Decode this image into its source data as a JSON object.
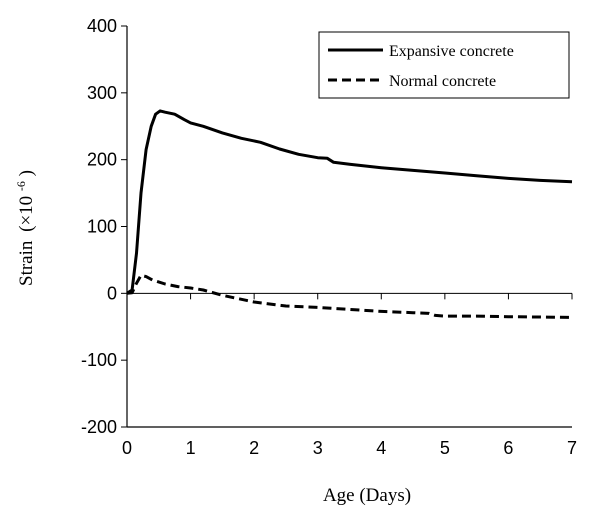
{
  "chart_data": {
    "type": "line",
    "xlabel": "Age (Days)",
    "ylabel": {
      "main": "Strain",
      "unit_prefix": "(×10",
      "unit_exp": "-6",
      "unit_suffix": ")"
    },
    "xlim": [
      0,
      7
    ],
    "ylim": [
      -200,
      400
    ],
    "xticks": [
      0,
      1,
      2,
      3,
      4,
      5,
      6,
      7
    ],
    "yticks": [
      -200,
      -100,
      0,
      100,
      200,
      300,
      400
    ],
    "xtick_labels": [
      "0",
      "1",
      "2",
      "3",
      "4",
      "5",
      "6",
      "7"
    ],
    "ytick_labels": [
      "-200",
      "-100",
      "0",
      "100",
      "200",
      "300",
      "400"
    ],
    "grid": false,
    "legend_position": "top-right",
    "series": [
      {
        "name": "Expansive concrete",
        "style": "solid",
        "color": "#000000",
        "points": [
          [
            0,
            0
          ],
          [
            0.08,
            5
          ],
          [
            0.15,
            60
          ],
          [
            0.22,
            150
          ],
          [
            0.3,
            215
          ],
          [
            0.38,
            250
          ],
          [
            0.45,
            268
          ],
          [
            0.52,
            273
          ],
          [
            0.6,
            271
          ],
          [
            0.75,
            268
          ],
          [
            0.9,
            260
          ],
          [
            1.0,
            255
          ],
          [
            1.2,
            250
          ],
          [
            1.5,
            240
          ],
          [
            1.8,
            232
          ],
          [
            2.1,
            226
          ],
          [
            2.4,
            216
          ],
          [
            2.7,
            208
          ],
          [
            3.0,
            203
          ],
          [
            3.15,
            202
          ],
          [
            3.25,
            196
          ],
          [
            3.5,
            193
          ],
          [
            4.0,
            188
          ],
          [
            4.5,
            184
          ],
          [
            5.0,
            180
          ],
          [
            5.5,
            176
          ],
          [
            6.0,
            172
          ],
          [
            6.5,
            169
          ],
          [
            7.0,
            167
          ]
        ]
      },
      {
        "name": "Normal concrete",
        "style": "dashed",
        "color": "#000000",
        "points": [
          [
            0,
            0
          ],
          [
            0.08,
            1
          ],
          [
            0.15,
            15
          ],
          [
            0.22,
            27
          ],
          [
            0.3,
            25
          ],
          [
            0.4,
            20
          ],
          [
            0.6,
            14
          ],
          [
            0.8,
            10
          ],
          [
            1.0,
            8
          ],
          [
            1.2,
            5
          ],
          [
            1.5,
            -3
          ],
          [
            2.0,
            -13
          ],
          [
            2.5,
            -19
          ],
          [
            3.0,
            -21
          ],
          [
            3.5,
            -24
          ],
          [
            4.0,
            -27
          ],
          [
            4.5,
            -29
          ],
          [
            4.75,
            -30
          ],
          [
            4.85,
            -33
          ],
          [
            5.0,
            -34
          ],
          [
            5.5,
            -34
          ],
          [
            6.0,
            -35
          ],
          [
            7.0,
            -36
          ]
        ]
      }
    ]
  }
}
